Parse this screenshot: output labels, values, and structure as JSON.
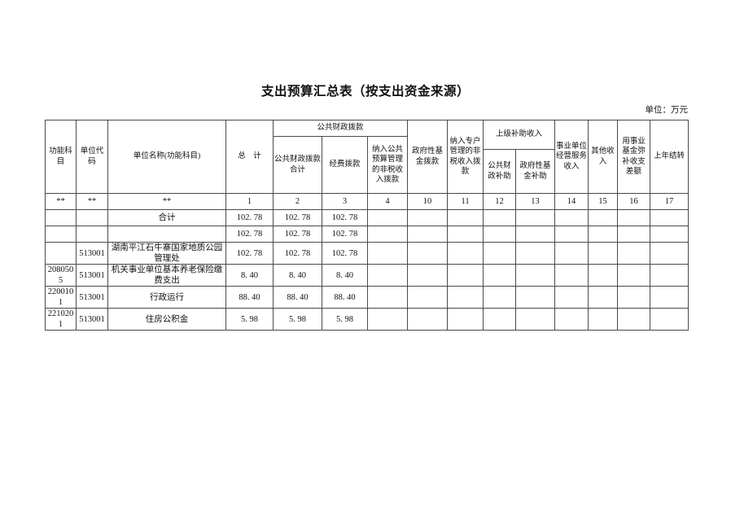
{
  "page": {
    "title": "支出预算汇总表（按支出资金来源）",
    "unit_label": "单位：万元"
  },
  "table": {
    "header": {
      "col_functional_subject": "功能科目",
      "col_unit_code": "单位代码",
      "col_unit_name": "单位名称(功能科目)",
      "col_total": "总　计",
      "group_public_finance_appropriation": "公共财政拨款",
      "col_public_finance_total": "公共财政拨款合计",
      "col_funding_appropriation": "经费拨款",
      "col_nontax_public_budget": "纳入公共预算管理的非税收入拨款",
      "col_gov_fund_appropriation": "政府性基金拨款",
      "col_nontax_special_account": "纳入专户管理的非税收入拨款",
      "group_superior_subsidy": "上级补助收入",
      "col_public_finance_subsidy": "公共财政补助",
      "col_gov_fund_subsidy": "政府性基金补助",
      "col_business_operating_income": "事业单位经营服务收入",
      "col_other_income": "其他收入",
      "col_fund_balance_offset": "用事业基金弥补收支差额",
      "col_prev_year_carryover": "上年结转"
    },
    "code_row": [
      "**",
      "**",
      "**",
      "1",
      "2",
      "3",
      "4",
      "10",
      "11",
      "12",
      "13",
      "14",
      "15",
      "16",
      "17"
    ],
    "rows": [
      [
        "",
        "",
        "合计",
        "102. 78",
        "102. 78",
        "102. 78",
        "",
        "",
        "",
        "",
        "",
        "",
        "",
        "",
        ""
      ],
      [
        "",
        "",
        "",
        "102. 78",
        "102. 78",
        "102. 78",
        "",
        "",
        "",
        "",
        "",
        "",
        "",
        "",
        ""
      ],
      [
        "",
        "513001",
        "湖南平江石牛寨国家地质公园管理处",
        "102. 78",
        "102. 78",
        "102. 78",
        "",
        "",
        "",
        "",
        "",
        "",
        "",
        "",
        ""
      ],
      [
        "2080505",
        "513001",
        "机关事业单位基本养老保险缴费支出",
        "8. 40",
        "8. 40",
        "8. 40",
        "",
        "",
        "",
        "",
        "",
        "",
        "",
        "",
        ""
      ],
      [
        "2200101",
        "513001",
        "行政运行",
        "88. 40",
        "88. 40",
        "88. 40",
        "",
        "",
        "",
        "",
        "",
        "",
        "",
        "",
        ""
      ],
      [
        "2210201",
        "513001",
        "住房公积金",
        "5. 98",
        "5. 98",
        "5. 98",
        "",
        "",
        "",
        "",
        "",
        "",
        "",
        "",
        ""
      ]
    ]
  }
}
